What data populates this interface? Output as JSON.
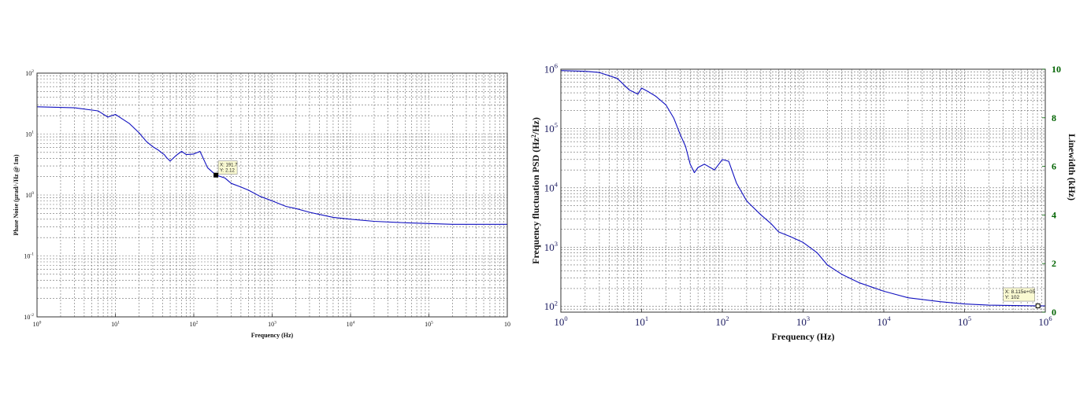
{
  "chart_data": [
    {
      "type": "line",
      "title": "",
      "xlabel": "Frequency (Hz)",
      "ylabel": "Phase Noise (μrad/√Hz @ 1m)",
      "xscale": "log",
      "yscale": "log",
      "xlim": [
        1,
        1000000
      ],
      "ylim": [
        0.01,
        100
      ],
      "grid": true,
      "color": "#1010c0",
      "x_ticks": [
        {
          "v": 1,
          "b": "10",
          "e": "0"
        },
        {
          "v": 10,
          "b": "10",
          "e": "1"
        },
        {
          "v": 100,
          "b": "10",
          "e": "2"
        },
        {
          "v": 1000,
          "b": "10",
          "e": "3"
        },
        {
          "v": 10000,
          "b": "10",
          "e": "4"
        },
        {
          "v": 100000,
          "b": "10",
          "e": "5"
        },
        {
          "v": 1000000,
          "b": "10",
          "e": ""
        }
      ],
      "y_ticks": [
        {
          "v": 0.01,
          "b": "10",
          "e": "-2"
        },
        {
          "v": 0.1,
          "b": "10",
          "e": "-1"
        },
        {
          "v": 1,
          "b": "10",
          "e": "0"
        },
        {
          "v": 10,
          "b": "10",
          "e": "1"
        },
        {
          "v": 100,
          "b": "10",
          "e": "2"
        }
      ],
      "series": [
        {
          "x": [
            1,
            3,
            6,
            8,
            10,
            12,
            15,
            20,
            25,
            30,
            35,
            40,
            42,
            45,
            50,
            60,
            70,
            80,
            100,
            120,
            150,
            191.7,
            250,
            300,
            400,
            500,
            700,
            1000,
            1500,
            2000,
            3000,
            4000,
            6000,
            10000,
            20000,
            50000,
            100000,
            200000,
            500000,
            1000000
          ],
          "y": [
            28,
            27,
            24,
            19,
            21,
            18,
            15,
            10.5,
            7.5,
            6.2,
            5.5,
            4.8,
            4.6,
            4.1,
            3.6,
            4.5,
            5.2,
            4.6,
            4.7,
            5.2,
            2.8,
            2.12,
            1.9,
            1.55,
            1.35,
            1.2,
            0.95,
            0.8,
            0.65,
            0.6,
            0.52,
            0.48,
            0.43,
            0.4,
            0.37,
            0.35,
            0.34,
            0.33,
            0.33,
            0.33
          ]
        }
      ],
      "datatip": {
        "x_text": "X: 191.7",
        "y_text": "Y: 2.12",
        "x": 191.7,
        "y": 2.12
      }
    },
    {
      "type": "line",
      "title": "",
      "xlabel": "Frequency (Hz)",
      "ylabel": "Frequency fluctuation PSD (Hz²/Hz)",
      "ylabel_right": "Linewidth (kHz)",
      "xscale": "log",
      "yscale": "log",
      "xlim": [
        1,
        1000000
      ],
      "ylim": [
        80,
        1000000
      ],
      "y2lim": [
        0,
        10
      ],
      "grid": true,
      "color": "#1010c0",
      "right_axis_color": "#006400",
      "x_ticks": [
        {
          "v": 1,
          "b": "10",
          "e": "0"
        },
        {
          "v": 10,
          "b": "10",
          "e": "1"
        },
        {
          "v": 100,
          "b": "10",
          "e": "2"
        },
        {
          "v": 1000,
          "b": "10",
          "e": "3"
        },
        {
          "v": 10000,
          "b": "10",
          "e": "4"
        },
        {
          "v": 100000,
          "b": "10",
          "e": "5"
        },
        {
          "v": 1000000,
          "b": "10",
          "e": "6"
        }
      ],
      "y_ticks": [
        {
          "v": 100,
          "b": "10",
          "e": "2"
        },
        {
          "v": 1000,
          "b": "10",
          "e": "3"
        },
        {
          "v": 10000,
          "b": "10",
          "e": "4"
        },
        {
          "v": 100000,
          "b": "10",
          "e": "5"
        },
        {
          "v": 1000000,
          "b": "10",
          "e": "6"
        }
      ],
      "y2_ticks": [
        "0",
        "2",
        "4",
        "6",
        "8",
        "10"
      ],
      "series": [
        {
          "x": [
            1,
            2,
            3,
            5,
            7,
            9,
            10,
            12,
            15,
            20,
            25,
            30,
            35,
            40,
            45,
            50,
            60,
            80,
            100,
            120,
            150,
            200,
            300,
            400,
            500,
            700,
            1000,
            1500,
            2000,
            3000,
            5000,
            10000,
            20000,
            50000,
            100000,
            200000,
            500000,
            811500,
            1000000
          ],
          "y": [
            950000,
            920000,
            880000,
            700000,
            450000,
            380000,
            480000,
            420000,
            350000,
            250000,
            150000,
            80000,
            50000,
            25000,
            18000,
            22000,
            25000,
            20000,
            30000,
            28000,
            12000,
            6000,
            3500,
            2500,
            1800,
            1500,
            1200,
            800,
            500,
            350,
            250,
            180,
            140,
            120,
            110,
            105,
            103,
            102,
            102
          ]
        }
      ],
      "datatip": {
        "x_text": "X: 8.115e+05",
        "y_text": "Y: 102",
        "x": 811500,
        "y": 102
      }
    }
  ]
}
